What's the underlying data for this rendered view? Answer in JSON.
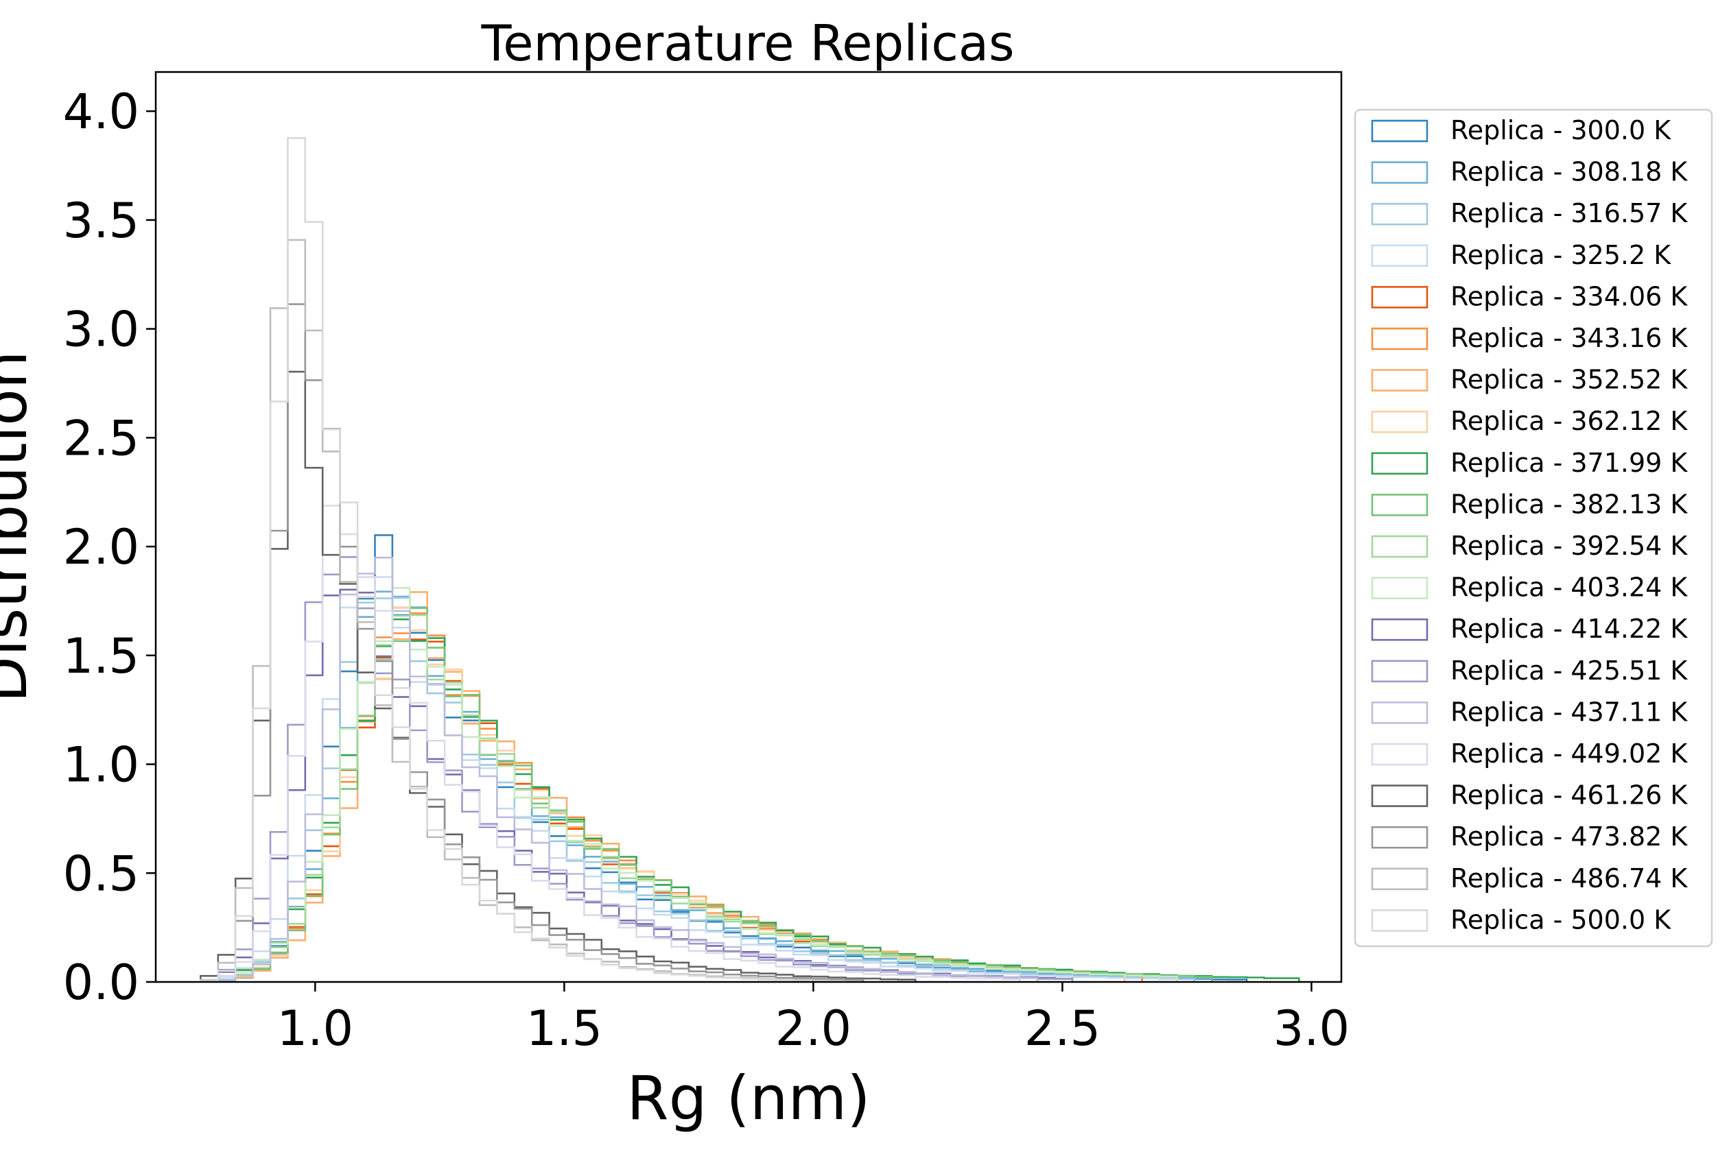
{
  "chart_data": {
    "type": "histogram-step",
    "title": "Temperature Replicas",
    "xlabel": "Rg (nm)",
    "ylabel": "Distribution",
    "xlim": [
      0.68,
      3.06
    ],
    "ylim": [
      0.0,
      4.18
    ],
    "xticks": [
      1.0,
      1.5,
      2.0,
      2.5,
      3.0
    ],
    "xtick_labels": [
      "1.0",
      "1.5",
      "2.0",
      "2.5",
      "3.0"
    ],
    "yticks": [
      0.0,
      0.5,
      1.0,
      1.5,
      2.0,
      2.5,
      3.0,
      3.5,
      4.0
    ],
    "ytick_labels": [
      "0.0",
      "0.5",
      "1.0",
      "1.5",
      "2.0",
      "2.5",
      "3.0",
      "3.5",
      "4.0"
    ],
    "grid": false,
    "legend_position": "outside-right",
    "bin_width": 0.035,
    "series": [
      {
        "name": "Replica - 300.0 K",
        "color": "#3182bd",
        "xmin": 0.82,
        "xmax": 2.85,
        "peak_x": 1.14,
        "peak_y": 1.95,
        "rise": 0.095,
        "tail": 0.33
      },
      {
        "name": "Replica - 308.18 K",
        "color": "#6baed6",
        "xmin": 0.83,
        "xmax": 2.8,
        "peak_x": 1.16,
        "peak_y": 1.88,
        "rise": 0.1,
        "tail": 0.34
      },
      {
        "name": "Replica - 316.57 K",
        "color": "#9ecae1",
        "xmin": 0.83,
        "xmax": 2.75,
        "peak_x": 1.14,
        "peak_y": 1.85,
        "rise": 0.1,
        "tail": 0.33
      },
      {
        "name": "Replica - 325.2 K",
        "color": "#c6dbef",
        "xmin": 0.83,
        "xmax": 2.7,
        "peak_x": 1.12,
        "peak_y": 1.9,
        "rise": 0.1,
        "tail": 0.32
      },
      {
        "name": "Replica - 334.06 K",
        "color": "#e6550d",
        "xmin": 0.85,
        "xmax": 2.6,
        "peak_x": 1.2,
        "peak_y": 1.7,
        "rise": 0.12,
        "tail": 0.36
      },
      {
        "name": "Replica - 343.16 K",
        "color": "#fd8d3c",
        "xmin": 0.85,
        "xmax": 2.65,
        "peak_x": 1.2,
        "peak_y": 1.72,
        "rise": 0.12,
        "tail": 0.37
      },
      {
        "name": "Replica - 352.52 K",
        "color": "#fdae6b",
        "xmin": 0.85,
        "xmax": 2.6,
        "peak_x": 1.21,
        "peak_y": 1.7,
        "rise": 0.12,
        "tail": 0.37
      },
      {
        "name": "Replica - 362.12 K",
        "color": "#fdd0a2",
        "xmin": 0.85,
        "xmax": 2.6,
        "peak_x": 1.2,
        "peak_y": 1.68,
        "rise": 0.12,
        "tail": 0.37
      },
      {
        "name": "Replica - 371.99 K",
        "color": "#31a354",
        "xmin": 0.86,
        "xmax": 2.95,
        "peak_x": 1.2,
        "peak_y": 1.68,
        "rise": 0.13,
        "tail": 0.38
      },
      {
        "name": "Replica - 382.13 K",
        "color": "#74c476",
        "xmin": 0.86,
        "xmax": 2.8,
        "peak_x": 1.2,
        "peak_y": 1.7,
        "rise": 0.12,
        "tail": 0.37
      },
      {
        "name": "Replica - 392.54 K",
        "color": "#a1d99b",
        "xmin": 0.86,
        "xmax": 2.7,
        "peak_x": 1.19,
        "peak_y": 1.7,
        "rise": 0.12,
        "tail": 0.36
      },
      {
        "name": "Replica - 403.24 K",
        "color": "#c7e9c0",
        "xmin": 0.86,
        "xmax": 2.7,
        "peak_x": 1.18,
        "peak_y": 1.72,
        "rise": 0.12,
        "tail": 0.36
      },
      {
        "name": "Replica - 414.22 K",
        "color": "#756bb1",
        "xmin": 0.82,
        "xmax": 2.5,
        "peak_x": 1.07,
        "peak_y": 1.9,
        "rise": 0.09,
        "tail": 0.3
      },
      {
        "name": "Replica - 425.51 K",
        "color": "#9e9ac8",
        "xmin": 0.82,
        "xmax": 2.5,
        "peak_x": 1.05,
        "peak_y": 2.02,
        "rise": 0.085,
        "tail": 0.29
      },
      {
        "name": "Replica - 437.11 K",
        "color": "#bcbddc",
        "xmin": 0.82,
        "xmax": 2.45,
        "peak_x": 1.12,
        "peak_y": 2.02,
        "rise": 0.09,
        "tail": 0.28
      },
      {
        "name": "Replica - 449.02 K",
        "color": "#dadaeb",
        "xmin": 0.82,
        "xmax": 2.4,
        "peak_x": 1.06,
        "peak_y": 2.2,
        "rise": 0.08,
        "tail": 0.26
      },
      {
        "name": "Replica - 461.26 K",
        "color": "#636363",
        "xmin": 0.78,
        "xmax": 2.2,
        "peak_x": 0.97,
        "peak_y": 2.7,
        "rise": 0.06,
        "tail": 0.22
      },
      {
        "name": "Replica - 473.82 K",
        "color": "#969696",
        "xmin": 0.8,
        "xmax": 2.1,
        "peak_x": 0.98,
        "peak_y": 3.2,
        "rise": 0.055,
        "tail": 0.19
      },
      {
        "name": "Replica - 486.74 K",
        "color": "#bdbdbd",
        "xmin": 0.8,
        "xmax": 2.0,
        "peak_x": 0.96,
        "peak_y": 3.65,
        "rise": 0.05,
        "tail": 0.17
      },
      {
        "name": "Replica - 500.0 K",
        "color": "#d9d9d9",
        "xmin": 0.8,
        "xmax": 2.0,
        "peak_x": 0.97,
        "peak_y": 3.96,
        "rise": 0.05,
        "tail": 0.16
      }
    ]
  }
}
